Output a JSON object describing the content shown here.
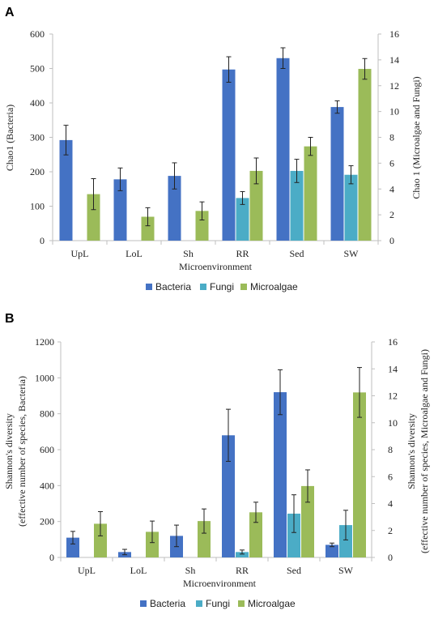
{
  "colors": {
    "Bacteria": "#4472c4",
    "Fungi": "#4bacc6",
    "Microalgae": "#9bbb59",
    "axis": "#bfbfbf",
    "errorbar": "#222222"
  },
  "chart_data": [
    {
      "panel": "A",
      "type": "bar",
      "categories": [
        "UpL",
        "LoL",
        "Sh",
        "RR",
        "Sed",
        "SW"
      ],
      "xlabel": "Microenvironment",
      "ylabel_left": "Chao1 (Bacteria)",
      "ylabel_right": "Chao 1 (Microalgae and Fungi)",
      "ylim_left": [
        0,
        600
      ],
      "ylim_right": [
        0,
        16
      ],
      "yticks_left": [
        "0",
        "100",
        "200",
        "300",
        "400",
        "500",
        "600"
      ],
      "yticks_right": [
        "0",
        "2",
        "4",
        "6",
        "8",
        "10",
        "12",
        "14",
        "16"
      ],
      "legend": [
        "Bacteria",
        "Fungi",
        "Microalgae"
      ],
      "legend_position": "bottom",
      "series": [
        {
          "name": "Bacteria",
          "axis": "left",
          "values": [
            292,
            178,
            188,
            497,
            530,
            388
          ],
          "errors": [
            43,
            33,
            38,
            37,
            30,
            18
          ]
        },
        {
          "name": "Fungi",
          "axis": "right",
          "values": [
            null,
            null,
            null,
            3.3,
            5.4,
            5.1
          ],
          "errors": [
            null,
            null,
            null,
            0.5,
            0.9,
            0.7
          ]
        },
        {
          "name": "Microalgae",
          "axis": "right",
          "values": [
            3.6,
            1.85,
            2.3,
            5.4,
            7.3,
            13.3
          ],
          "errors": [
            1.2,
            0.7,
            0.7,
            1.0,
            0.7,
            0.8
          ]
        }
      ]
    },
    {
      "panel": "B",
      "type": "bar",
      "categories": [
        "UpL",
        "LoL",
        "Sh",
        "RR",
        "Sed",
        "SW"
      ],
      "xlabel": "Microenvironment",
      "ylabel_left": [
        "Shannon's diversity",
        "(effective number of species, Bacteria)"
      ],
      "ylabel_right": [
        "Shannon's diversity",
        "(effective number of species, Microalgae and Fungi)"
      ],
      "ylim_left": [
        0,
        1200
      ],
      "ylim_right": [
        0,
        16
      ],
      "yticks_left": [
        "0",
        "200",
        "400",
        "600",
        "800",
        "1000",
        "1200"
      ],
      "yticks_right": [
        "0",
        "2",
        "4",
        "6",
        "8",
        "10",
        "12",
        "14",
        "16"
      ],
      "legend": [
        "Bacteria",
        "Fungi",
        "Microalgae"
      ],
      "legend_position": "bottom",
      "series": [
        {
          "name": "Bacteria",
          "axis": "left",
          "values": [
            110,
            30,
            120,
            680,
            920,
            70
          ],
          "errors": [
            35,
            15,
            60,
            145,
            125,
            10
          ]
        },
        {
          "name": "Fungi",
          "axis": "right",
          "values": [
            null,
            null,
            null,
            0.4,
            3.25,
            2.4
          ],
          "errors": [
            null,
            null,
            null,
            0.15,
            1.4,
            1.1
          ]
        },
        {
          "name": "Microalgae",
          "axis": "right",
          "values": [
            2.5,
            1.9,
            2.7,
            3.35,
            5.3,
            12.25
          ],
          "errors": [
            0.9,
            0.8,
            0.9,
            0.75,
            1.2,
            1.85
          ]
        }
      ]
    }
  ]
}
